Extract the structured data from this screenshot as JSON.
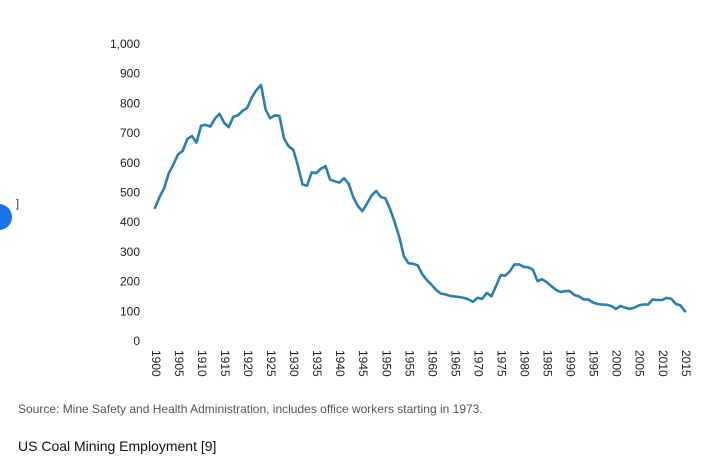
{
  "chart_data": {
    "type": "line",
    "title": "",
    "xlabel": "",
    "ylabel": "",
    "xlim": [
      1900,
      2015
    ],
    "ylim": [
      0,
      1000
    ],
    "y_ticks": [
      0,
      100,
      200,
      300,
      400,
      500,
      600,
      700,
      800,
      900,
      1000
    ],
    "y_tick_labels": [
      "0",
      "100",
      "200",
      "300",
      "400",
      "500",
      "600",
      "700",
      "800",
      "900",
      "1,000"
    ],
    "x_tick_labels": [
      "1900",
      "1905",
      "1910",
      "1915",
      "1920",
      "1925",
      "1930",
      "1935",
      "1940",
      "1945",
      "1950",
      "1955",
      "1960",
      "1965",
      "1970",
      "1975",
      "1980",
      "1985",
      "1990",
      "1995",
      "2000",
      "2005",
      "2010",
      "2015"
    ],
    "series": [
      {
        "name": "US Coal Mining Employment",
        "color": "#2a7fad",
        "points": [
          [
            1900,
            448
          ],
          [
            1901,
            485
          ],
          [
            1902,
            515
          ],
          [
            1903,
            565
          ],
          [
            1904,
            595
          ],
          [
            1905,
            628
          ],
          [
            1906,
            640
          ],
          [
            1907,
            680
          ],
          [
            1908,
            690
          ],
          [
            1909,
            668
          ],
          [
            1910,
            725
          ],
          [
            1911,
            728
          ],
          [
            1912,
            722
          ],
          [
            1913,
            748
          ],
          [
            1914,
            765
          ],
          [
            1915,
            735
          ],
          [
            1916,
            720
          ],
          [
            1917,
            755
          ],
          [
            1918,
            760
          ],
          [
            1919,
            775
          ],
          [
            1920,
            785
          ],
          [
            1921,
            820
          ],
          [
            1922,
            845
          ],
          [
            1923,
            862
          ],
          [
            1924,
            779
          ],
          [
            1925,
            750
          ],
          [
            1926,
            760
          ],
          [
            1927,
            758
          ],
          [
            1928,
            682
          ],
          [
            1929,
            655
          ],
          [
            1930,
            644
          ],
          [
            1931,
            590
          ],
          [
            1932,
            527
          ],
          [
            1933,
            523
          ],
          [
            1934,
            568
          ],
          [
            1935,
            565
          ],
          [
            1936,
            580
          ],
          [
            1937,
            589
          ],
          [
            1938,
            543
          ],
          [
            1939,
            538
          ],
          [
            1940,
            533
          ],
          [
            1941,
            548
          ],
          [
            1942,
            530
          ],
          [
            1943,
            485
          ],
          [
            1944,
            455
          ],
          [
            1945,
            437
          ],
          [
            1946,
            463
          ],
          [
            1947,
            490
          ],
          [
            1948,
            505
          ],
          [
            1949,
            485
          ],
          [
            1950,
            480
          ],
          [
            1951,
            445
          ],
          [
            1952,
            400
          ],
          [
            1953,
            350
          ],
          [
            1954,
            285
          ],
          [
            1955,
            262
          ],
          [
            1956,
            260
          ],
          [
            1957,
            255
          ],
          [
            1958,
            225
          ],
          [
            1959,
            205
          ],
          [
            1960,
            190
          ],
          [
            1961,
            172
          ],
          [
            1962,
            160
          ],
          [
            1963,
            157
          ],
          [
            1964,
            152
          ],
          [
            1965,
            150
          ],
          [
            1966,
            148
          ],
          [
            1967,
            145
          ],
          [
            1968,
            140
          ],
          [
            1969,
            132
          ],
          [
            1970,
            145
          ],
          [
            1971,
            142
          ],
          [
            1972,
            162
          ],
          [
            1973,
            150
          ],
          [
            1974,
            185
          ],
          [
            1975,
            222
          ],
          [
            1976,
            220
          ],
          [
            1977,
            235
          ],
          [
            1978,
            258
          ],
          [
            1979,
            258
          ],
          [
            1980,
            250
          ],
          [
            1981,
            248
          ],
          [
            1982,
            240
          ],
          [
            1983,
            202
          ],
          [
            1984,
            208
          ],
          [
            1985,
            198
          ],
          [
            1986,
            185
          ],
          [
            1987,
            172
          ],
          [
            1988,
            165
          ],
          [
            1989,
            168
          ],
          [
            1990,
            168
          ],
          [
            1991,
            155
          ],
          [
            1992,
            150
          ],
          [
            1993,
            140
          ],
          [
            1994,
            140
          ],
          [
            1995,
            130
          ],
          [
            1996,
            125
          ],
          [
            1997,
            123
          ],
          [
            1998,
            122
          ],
          [
            1999,
            118
          ],
          [
            2000,
            108
          ],
          [
            2001,
            118
          ],
          [
            2002,
            112
          ],
          [
            2003,
            108
          ],
          [
            2004,
            112
          ],
          [
            2005,
            120
          ],
          [
            2006,
            123
          ],
          [
            2007,
            123
          ],
          [
            2008,
            140
          ],
          [
            2009,
            138
          ],
          [
            2010,
            138
          ],
          [
            2011,
            145
          ],
          [
            2012,
            142
          ],
          [
            2013,
            125
          ],
          [
            2014,
            120
          ],
          [
            2015,
            100
          ]
        ]
      }
    ]
  },
  "source_note": "Source: Mine Safety and Health Administration, includes office workers starting in 1973.",
  "caption": "US Coal Mining Employment [9]",
  "edge_fragment": "]"
}
